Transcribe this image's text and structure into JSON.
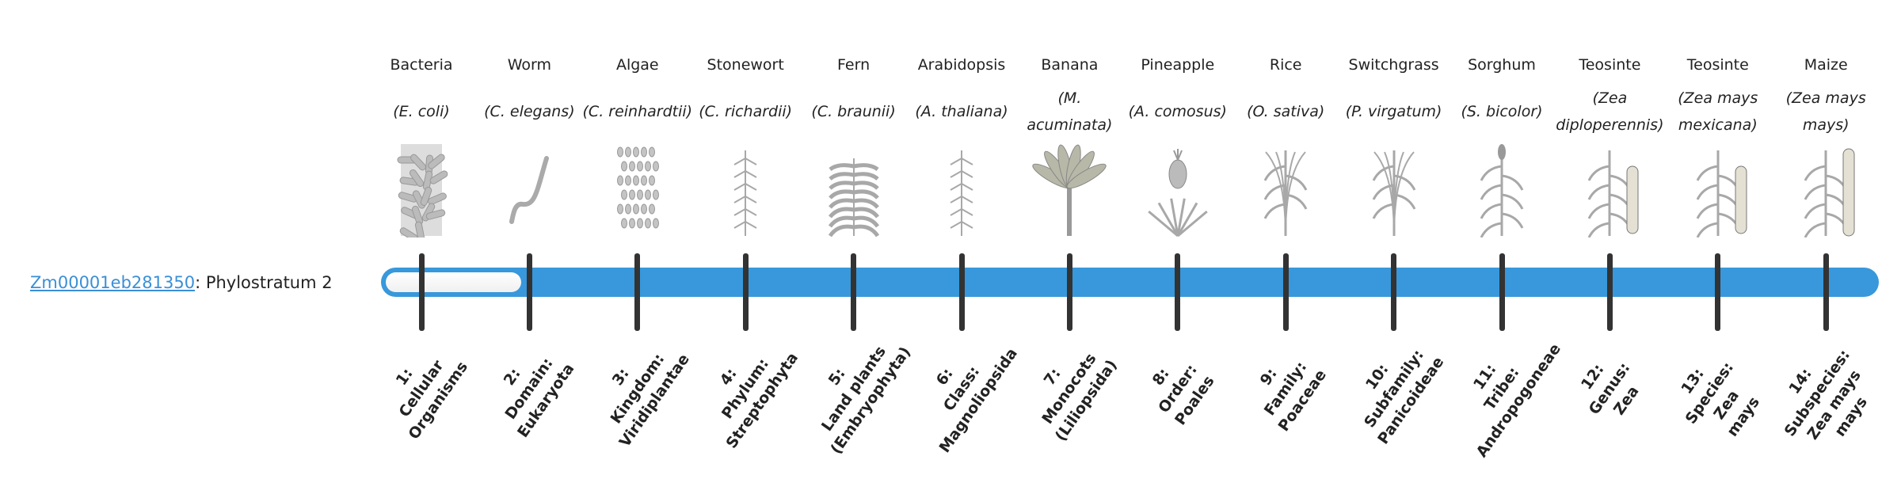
{
  "gene": {
    "id": "Zm00001eb281350",
    "suffix": ": Phylostratum 2"
  },
  "colors": {
    "bar": "#3898db",
    "tick": "#333333",
    "link": "#3a8fd6",
    "empty": "#f4f4f4"
  },
  "phylostratum": {
    "value": 2,
    "total": 14
  },
  "organisms": [
    {
      "name": "Bacteria",
      "scientific": "(E. coli)",
      "icon": "bacteria-icon"
    },
    {
      "name": "Worm",
      "scientific": "(C. elegans)",
      "icon": "worm-icon"
    },
    {
      "name": "Algae",
      "scientific": "(C. reinhardtii)",
      "icon": "algae-icon"
    },
    {
      "name": "Stonewort",
      "scientific": "(C. richardii)",
      "icon": "stonewort-icon"
    },
    {
      "name": "Fern",
      "scientific": "(C. braunii)",
      "icon": "fern-icon"
    },
    {
      "name": "Arabidopsis",
      "scientific": "(A. thaliana)",
      "icon": "arabidopsis-icon"
    },
    {
      "name": "Banana",
      "scientific": "(M. acuminata)",
      "icon": "banana-icon"
    },
    {
      "name": "Pineapple",
      "scientific": "(A. comosus)",
      "icon": "pineapple-icon"
    },
    {
      "name": "Rice",
      "scientific": "(O. sativa)",
      "icon": "rice-icon"
    },
    {
      "name": "Switchgrass",
      "scientific": "(P. virgatum)",
      "icon": "switchgrass-icon"
    },
    {
      "name": "Sorghum",
      "scientific": "(S. bicolor)",
      "icon": "sorghum-icon"
    },
    {
      "name": "Teosinte",
      "scientific": "(Zea diploperennis)",
      "icon": "teosinte-icon"
    },
    {
      "name": "Teosinte",
      "scientific": "(Zea mays mexicana)",
      "icon": "teosinte-mexicana-icon"
    },
    {
      "name": "Maize",
      "scientific": "(Zea mays mays)",
      "icon": "maize-icon"
    }
  ],
  "strata": [
    [
      "1:",
      "Cellular",
      "Organisms"
    ],
    [
      "2:",
      "Domain:",
      "Eukaryota"
    ],
    [
      "3:",
      "Kingdom:",
      "Viridiplantae"
    ],
    [
      "4:",
      "Phylum:",
      "Streptophyta"
    ],
    [
      "5:",
      "Land plants",
      "(Embryophyta)"
    ],
    [
      "6:",
      "Class:",
      "Magnoliopsida"
    ],
    [
      "7:",
      "Monocots",
      "(Liliopsida)"
    ],
    [
      "8:",
      "Order:",
      "Poales"
    ],
    [
      "9:",
      "Family:",
      "Poaceae"
    ],
    [
      "10:",
      "Subfamily:",
      "Panicoideae"
    ],
    [
      "11:",
      "Tribe:",
      "Andropogoneae"
    ],
    [
      "12:",
      "Genus:",
      "Zea"
    ],
    [
      "13:",
      "Species:",
      "Zea",
      "mays"
    ],
    [
      "14:",
      "Subspecies:",
      "Zea mays",
      "mays"
    ]
  ]
}
